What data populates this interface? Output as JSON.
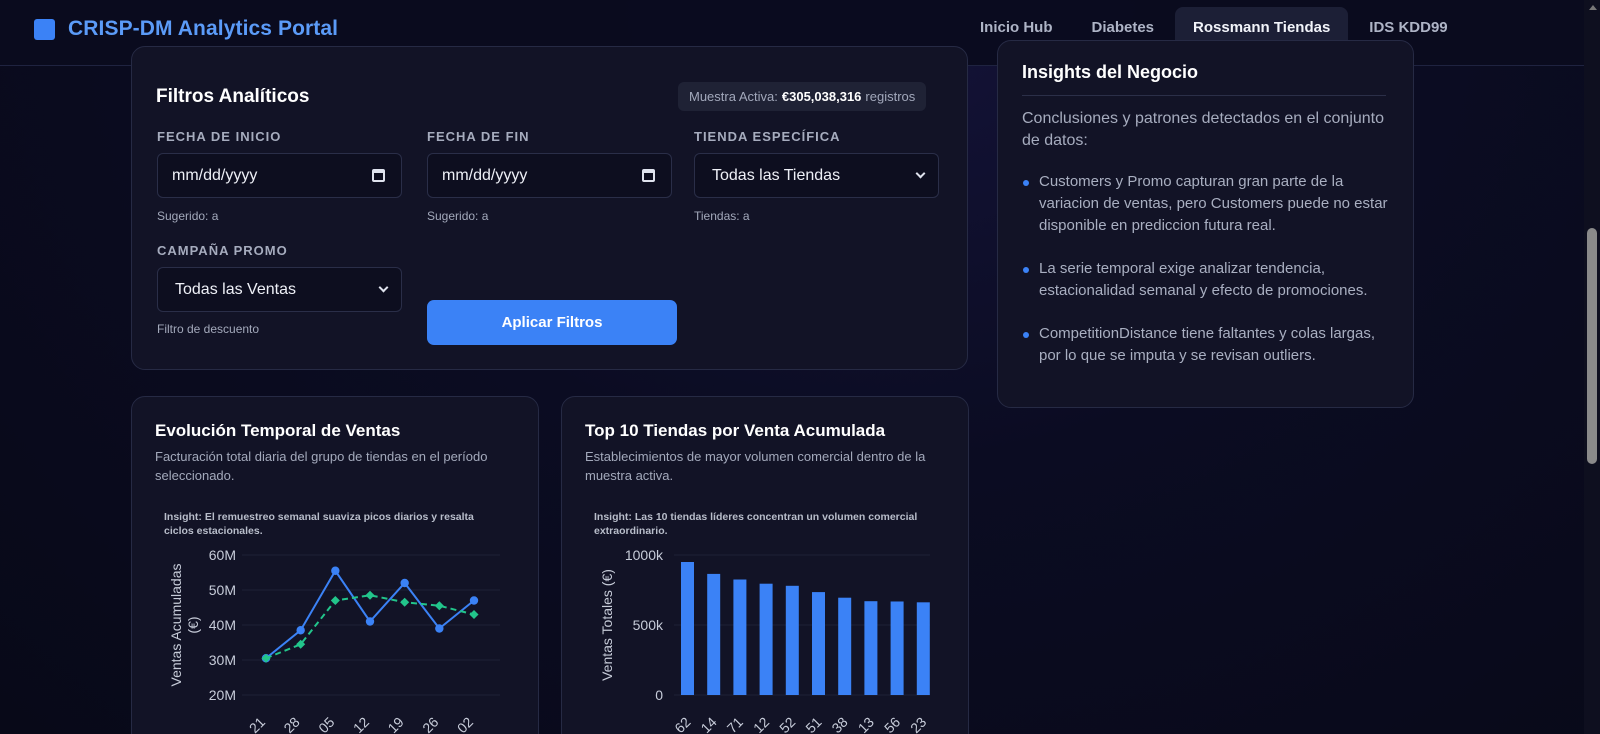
{
  "app": {
    "title": "CRISP-DM Analytics Portal"
  },
  "nav": {
    "items": [
      {
        "label": "Inicio Hub"
      },
      {
        "label": "Diabetes"
      },
      {
        "label": "Rossmann Tiendas",
        "active": true
      },
      {
        "label": "IDS KDD99"
      }
    ]
  },
  "filters": {
    "title": "Filtros Analíticos",
    "sample_prefix": "Muestra Activa:",
    "sample_value": "€305,038,316",
    "sample_suffix": "registros",
    "start": {
      "label": "FECHA DE INICIO",
      "value": "mm/dd/yyyy",
      "hint": "Sugerido: a"
    },
    "end": {
      "label": "FECHA DE FIN",
      "value": "mm/dd/yyyy",
      "hint": "Sugerido: a"
    },
    "store": {
      "label": "TIENDA ESPECÍFICA",
      "value": "Todas las Tiendas",
      "hint": "Tiendas: a"
    },
    "promo": {
      "label": "CAMPAÑA PROMO",
      "value": "Todas las Ventas",
      "hint": "Filtro de descuento"
    },
    "apply_label": "Aplicar Filtros"
  },
  "insights": {
    "title": "Insights del Negocio",
    "intro": "Conclusiones y patrones detectados en el conjunto de datos:",
    "items": [
      "Customers y Promo capturan gran parte de la variacion de ventas, pero Customers puede no estar disponible en prediccion futura real.",
      "La serie temporal exige analizar tendencia, estacionalidad semanal y efecto de promociones.",
      "CompetitionDistance tiene faltantes y colas largas, por lo que se imputa y se revisan outliers."
    ]
  },
  "charts": {
    "evolution": {
      "title": "Evolución Temporal de Ventas",
      "subtitle": "Facturación total diaria del grupo de tiendas en el período seleccionado."
    },
    "top10": {
      "title": "Top 10 Tiendas por Venta Acumulada",
      "subtitle": "Establecimientos de mayor volumen comercial dentro de la muestra activa."
    }
  },
  "colors": {
    "accent": "#3b82f6",
    "secondary": "#22c58b"
  },
  "chart_data": [
    {
      "type": "line",
      "annotation": "Insight: El remuestreo semanal suaviza picos diarios y resalta ciclos estacionales.",
      "ylabel": "Ventas Acumuladas (€)",
      "yticks": [
        "20M",
        "30M",
        "40M",
        "50M",
        "60M"
      ],
      "ylim": [
        20,
        60
      ],
      "x": [
        "21",
        "28",
        "05",
        "12",
        "19",
        "26",
        "02"
      ],
      "series": [
        {
          "values": [
            30.5,
            38.5,
            55.5,
            41,
            52,
            39,
            47
          ],
          "style": "solid",
          "color": "#3b82f6"
        },
        {
          "values": [
            30.5,
            34.5,
            47,
            48.5,
            46.5,
            45.5,
            43
          ],
          "style": "dashed",
          "color": "#22c58b"
        }
      ],
      "grid": true
    },
    {
      "type": "bar",
      "annotation": "Insight: Las 10 tiendas líderes concentran un volumen comercial extraordinario.",
      "ylabel": "Ventas Totales (€)",
      "yticks": [
        "0",
        "500k",
        "1000k"
      ],
      "ylim": [
        0,
        1000
      ],
      "categories": [
        "62",
        "14",
        "71",
        "12",
        "52",
        "51",
        "38",
        "13",
        "56",
        "23"
      ],
      "values": [
        950,
        865,
        825,
        795,
        780,
        735,
        695,
        670,
        668,
        662
      ],
      "color": "#3b82f6",
      "grid": true
    }
  ]
}
